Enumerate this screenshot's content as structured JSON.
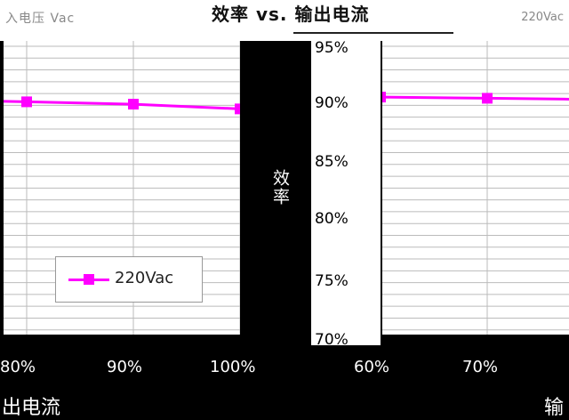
{
  "header": {
    "left_text": "入电压 Vac",
    "title": "效率 vs. 输出电流",
    "right_text": "220Vac"
  },
  "colors": {
    "series": "#ff00ff",
    "grid": "#bbbbbb",
    "background": "#000000"
  },
  "chart_data": {
    "type": "line",
    "title": "效率 vs. 输出电流",
    "ylabel": "效率",
    "xlabel": "输出电流",
    "ylim": [
      70,
      95
    ],
    "yticks": [
      "70%",
      "75%",
      "80%",
      "85%",
      "90%",
      "95%"
    ],
    "panels": [
      {
        "xticks": [
          "80%",
          "90%",
          "100%"
        ],
        "x": [
          80,
          90,
          100
        ],
        "series": [
          {
            "name": "220Vac",
            "values": [
              90.3,
              90.1,
              89.7
            ]
          }
        ]
      },
      {
        "xticks": [
          "60%",
          "70%"
        ],
        "x": [
          60,
          70
        ],
        "series": [
          {
            "name": "220Vac",
            "values": [
              90.7,
              90.6
            ]
          }
        ]
      }
    ],
    "legend": {
      "entries": [
        "220Vac"
      ],
      "placement": "bottom-left"
    }
  },
  "xlabel_left": "出电流",
  "xlabel_right": "输"
}
